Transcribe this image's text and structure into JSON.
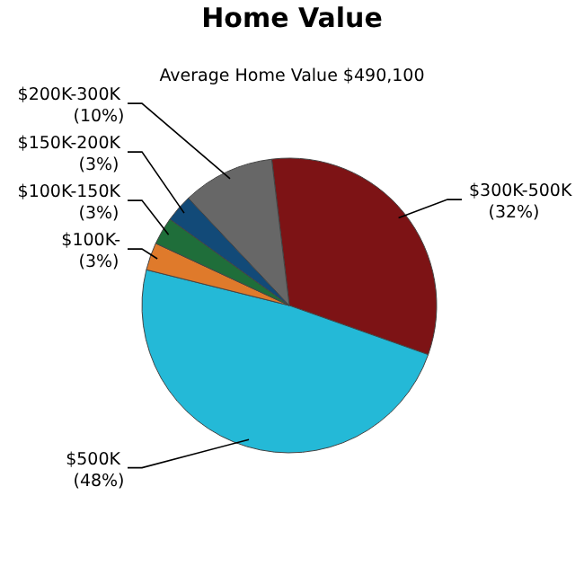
{
  "chart_data": {
    "type": "pie",
    "title": "Home Value",
    "subtitle": "Average Home Value  $490,100",
    "categories": [
      "$300K-500K",
      "$500K",
      "$100K-",
      "$100K-150K",
      "$150K-200K",
      "$200K-300K"
    ],
    "values": [
      32,
      48,
      3,
      3,
      3,
      10
    ],
    "value_labels": [
      "(32%)",
      "(48%)",
      "(3%)",
      "(3%)",
      "(3%)",
      "(10%)"
    ],
    "colors": [
      "#7d1315",
      "#24b9d7",
      "#df7a2b",
      "#1f6e3a",
      "#124a78",
      "#676767"
    ]
  }
}
